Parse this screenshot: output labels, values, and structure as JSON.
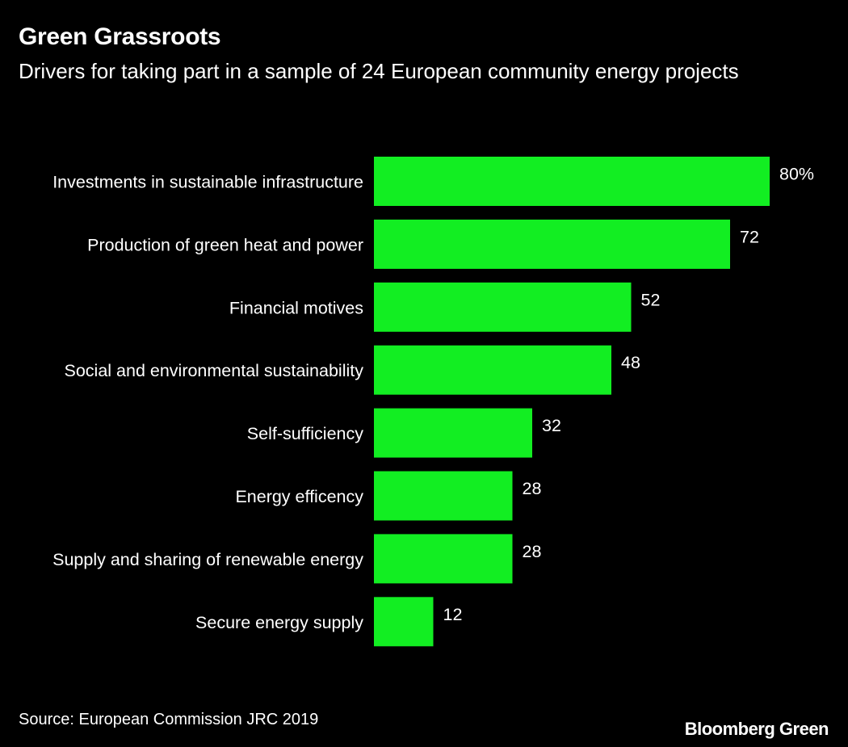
{
  "chart_data": {
    "type": "bar",
    "orientation": "horizontal",
    "title": "Green Grassroots",
    "subtitle": "Drivers for taking part in a sample of 24 European community energy projects",
    "categories": [
      "Investments in sustainable infrastructure",
      "Production of green heat and power",
      "Financial motives",
      "Social and environmental sustainability",
      "Self-sufficiency",
      "Energy efficency",
      "Supply and sharing of renewable energy",
      "Secure energy supply"
    ],
    "values": [
      80,
      72,
      52,
      48,
      32,
      28,
      28,
      12
    ],
    "value_labels": [
      "80%",
      "72",
      "52",
      "48",
      "32",
      "28",
      "28",
      "12"
    ],
    "xlabel": "",
    "ylabel": "",
    "xlim": [
      0,
      80
    ],
    "grid": false,
    "unit": "%",
    "bar_color": "#12ee22"
  },
  "footer": {
    "source": "Source: European Commission JRC 2019",
    "brand": "Bloomberg Green"
  }
}
